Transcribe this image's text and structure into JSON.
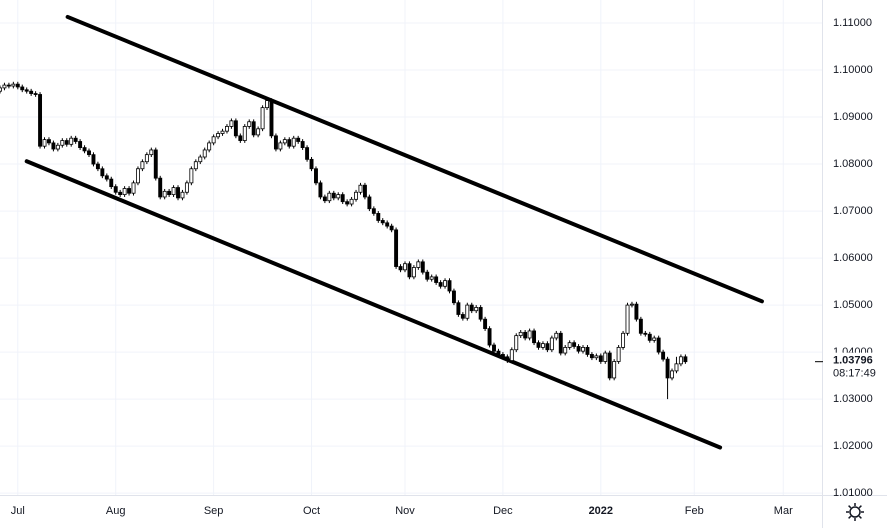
{
  "chart_data": {
    "type": "candlestick",
    "x": [
      -4,
      -3,
      -2,
      -1,
      0,
      1,
      2,
      3,
      4,
      5,
      6,
      7,
      8,
      9,
      10,
      11,
      12,
      13,
      14,
      15,
      16,
      17,
      18,
      19,
      20,
      21,
      22,
      23,
      24,
      25,
      26,
      27,
      28,
      29,
      30,
      31,
      32,
      33,
      34,
      35,
      36,
      37,
      38,
      39,
      40,
      41,
      42,
      43,
      44,
      45,
      46,
      47,
      48,
      49,
      50,
      51,
      52,
      53,
      54,
      55,
      56,
      57,
      58,
      59,
      60,
      61,
      62,
      63,
      64,
      65,
      66,
      67,
      68,
      69,
      70,
      71,
      72,
      73,
      74,
      75,
      76,
      77,
      78,
      79,
      80,
      81,
      82,
      83,
      84,
      85,
      86,
      87,
      88,
      89,
      90,
      91,
      92,
      93,
      94,
      95,
      96,
      97,
      98,
      99,
      100,
      101,
      102,
      103,
      104,
      105,
      106,
      107,
      108,
      109,
      110,
      111,
      112,
      113,
      114,
      115,
      116,
      117,
      118,
      119,
      120,
      121,
      122,
      123,
      124,
      125,
      126,
      127,
      128,
      129,
      130,
      131,
      132,
      133,
      134,
      135,
      136,
      137,
      138,
      139,
      140,
      141,
      142,
      143,
      144,
      145,
      146,
      147,
      148,
      149,
      150
    ],
    "open": [
      1.0955,
      1.0962,
      1.0968,
      1.0966,
      1.097,
      1.0964,
      1.0958,
      1.0955,
      1.095,
      1.0948,
      1.0838,
      1.0852,
      1.0845,
      1.0832,
      1.084,
      1.085,
      1.0842,
      1.0855,
      1.0848,
      1.0835,
      1.0828,
      1.082,
      1.08,
      1.079,
      1.0775,
      1.0768,
      1.0752,
      1.074,
      1.0735,
      1.0748,
      1.0738,
      1.076,
      1.079,
      1.0805,
      1.082,
      1.083,
      1.077,
      1.073,
      1.0742,
      1.0735,
      1.075,
      1.0728,
      1.074,
      1.076,
      1.079,
      1.0805,
      1.0815,
      1.083,
      1.0845,
      1.0858,
      1.0865,
      1.087,
      1.088,
      1.0892,
      1.086,
      1.085,
      1.088,
      1.089,
      1.0862,
      1.0875,
      1.092,
      1.0935,
      1.086,
      1.0832,
      1.0845,
      1.0852,
      1.0838,
      1.0855,
      1.0848,
      1.0835,
      1.081,
      1.079,
      1.076,
      1.073,
      1.0722,
      1.0738,
      1.0728,
      1.0735,
      1.072,
      1.0715,
      1.0725,
      1.074,
      1.0755,
      1.073,
      1.0705,
      1.0695,
      1.068,
      1.0675,
      1.0668,
      1.066,
      1.0582,
      1.0575,
      1.0588,
      1.056,
      1.058,
      1.0592,
      1.057,
      1.0555,
      1.056,
      1.0548,
      1.054,
      1.0552,
      1.053,
      1.0505,
      1.048,
      1.0472,
      1.05,
      1.0488,
      1.0495,
      1.047,
      1.045,
      1.0415,
      1.0402,
      1.0395,
      1.039,
      1.0382,
      1.0405,
      1.0435,
      1.0442,
      1.043,
      1.0445,
      1.042,
      1.041,
      1.0418,
      1.0405,
      1.043,
      1.044,
      1.0398,
      1.041,
      1.042,
      1.0412,
      1.0402,
      1.041,
      1.0395,
      1.0388,
      1.0392,
      1.038,
      1.0398,
      1.0345,
      1.038,
      1.041,
      1.044,
      1.05,
      1.0502,
      1.047,
      1.044,
      1.0438,
      1.0425,
      1.043,
      1.04,
      1.0385,
      1.0345,
      1.036,
      1.0375,
      1.039
    ],
    "high": [
      1.0967,
      1.0973,
      1.0973,
      1.0975,
      1.0975,
      1.0969,
      1.0963,
      1.096,
      1.0955,
      1.0953,
      1.0857,
      1.0857,
      1.085,
      1.0845,
      1.0855,
      1.0855,
      1.086,
      1.086,
      1.0853,
      1.084,
      1.0833,
      1.0825,
      1.0805,
      1.0795,
      1.078,
      1.0773,
      1.0757,
      1.0745,
      1.0753,
      1.0753,
      1.0765,
      1.0795,
      1.081,
      1.0825,
      1.0835,
      1.0835,
      1.0775,
      1.0747,
      1.0747,
      1.0755,
      1.0755,
      1.0745,
      1.0765,
      1.0795,
      1.081,
      1.082,
      1.0835,
      1.085,
      1.0863,
      1.087,
      1.0875,
      1.0885,
      1.0897,
      1.0897,
      1.0865,
      1.0885,
      1.0895,
      1.0895,
      1.088,
      1.0925,
      1.094,
      1.094,
      1.0865,
      1.085,
      1.0857,
      1.0857,
      1.086,
      1.086,
      1.0853,
      1.084,
      1.0815,
      1.0795,
      1.0765,
      1.0735,
      1.0743,
      1.0743,
      1.074,
      1.074,
      1.0725,
      1.073,
      1.0745,
      1.076,
      1.076,
      1.0735,
      1.071,
      1.07,
      1.0685,
      1.068,
      1.0673,
      1.0665,
      1.0587,
      1.0593,
      1.0593,
      1.0585,
      1.0597,
      1.0597,
      1.0575,
      1.0565,
      1.0565,
      1.0553,
      1.0557,
      1.0557,
      1.0535,
      1.051,
      1.0485,
      1.0505,
      1.0505,
      1.05,
      1.05,
      1.0475,
      1.0455,
      1.042,
      1.0407,
      1.04,
      1.0395,
      1.041,
      1.044,
      1.0447,
      1.0447,
      1.045,
      1.045,
      1.0425,
      1.0423,
      1.0423,
      1.0435,
      1.0445,
      1.0445,
      1.0415,
      1.0425,
      1.0425,
      1.0417,
      1.0415,
      1.0415,
      1.04,
      1.0397,
      1.0397,
      1.0403,
      1.0403,
      1.0385,
      1.0415,
      1.0445,
      1.0505,
      1.0507,
      1.0507,
      1.0475,
      1.0445,
      1.0443,
      1.0435,
      1.0435,
      1.0405,
      1.039,
      1.0365,
      1.039,
      1.0395,
      1.0395
    ],
    "low": [
      1.095,
      1.0957,
      1.0961,
      1.0961,
      1.0959,
      1.0953,
      1.095,
      1.0945,
      1.0943,
      1.0833,
      1.0833,
      1.084,
      1.0827,
      1.0827,
      1.0835,
      1.0837,
      1.0837,
      1.0843,
      1.083,
      1.0823,
      1.0815,
      1.0795,
      1.0785,
      1.077,
      1.0763,
      1.0747,
      1.0735,
      1.073,
      1.073,
      1.0733,
      1.0733,
      1.0755,
      1.0785,
      1.08,
      1.0815,
      1.0765,
      1.0725,
      1.0725,
      1.073,
      1.073,
      1.0723,
      1.0723,
      1.0735,
      1.0755,
      1.0785,
      1.08,
      1.081,
      1.0825,
      1.084,
      1.0853,
      1.086,
      1.0865,
      1.0875,
      1.0855,
      1.0845,
      1.0845,
      1.0875,
      1.0857,
      1.0857,
      1.087,
      1.0915,
      1.0855,
      1.0827,
      1.0827,
      1.084,
      1.0833,
      1.0833,
      1.0843,
      1.083,
      1.0805,
      1.0785,
      1.0755,
      1.0725,
      1.0717,
      1.0717,
      1.0723,
      1.0723,
      1.0715,
      1.071,
      1.071,
      1.072,
      1.0735,
      1.0725,
      1.07,
      1.069,
      1.0675,
      1.067,
      1.0663,
      1.0655,
      1.0577,
      1.057,
      1.057,
      1.0555,
      1.0555,
      1.0575,
      1.0565,
      1.055,
      1.055,
      1.0543,
      1.0535,
      1.0535,
      1.0525,
      1.05,
      1.0475,
      1.0467,
      1.0467,
      1.0483,
      1.0483,
      1.0465,
      1.0445,
      1.041,
      1.0397,
      1.039,
      1.0385,
      1.0377,
      1.0377,
      1.04,
      1.043,
      1.0425,
      1.0425,
      1.0415,
      1.0405,
      1.0405,
      1.04,
      1.04,
      1.0425,
      1.0393,
      1.0393,
      1.0405,
      1.0407,
      1.0397,
      1.0397,
      1.039,
      1.0383,
      1.0383,
      1.0375,
      1.0375,
      1.034,
      1.034,
      1.0375,
      1.0405,
      1.0435,
      1.0495,
      1.0465,
      1.0435,
      1.0433,
      1.042,
      1.042,
      1.0395,
      1.038,
      1.03,
      1.034,
      1.0355,
      1.037,
      1.0375
    ],
    "close": [
      1.0962,
      1.0968,
      1.0966,
      1.097,
      1.0964,
      1.0958,
      1.0955,
      1.095,
      1.0948,
      1.0838,
      1.0852,
      1.0845,
      1.0832,
      1.084,
      1.085,
      1.0842,
      1.0855,
      1.0848,
      1.0835,
      1.0828,
      1.082,
      1.08,
      1.079,
      1.0775,
      1.0768,
      1.0752,
      1.074,
      1.0735,
      1.0748,
      1.0738,
      1.076,
      1.079,
      1.0805,
      1.082,
      1.083,
      1.077,
      1.073,
      1.0742,
      1.0735,
      1.075,
      1.0728,
      1.074,
      1.076,
      1.079,
      1.0805,
      1.0815,
      1.083,
      1.0845,
      1.0858,
      1.0865,
      1.087,
      1.088,
      1.0892,
      1.086,
      1.085,
      1.088,
      1.089,
      1.0862,
      1.0875,
      1.092,
      1.0935,
      1.086,
      1.0832,
      1.0845,
      1.0852,
      1.0838,
      1.0855,
      1.0848,
      1.0835,
      1.081,
      1.079,
      1.076,
      1.073,
      1.0722,
      1.0738,
      1.0728,
      1.0735,
      1.072,
      1.0715,
      1.0725,
      1.074,
      1.0755,
      1.073,
      1.0705,
      1.0695,
      1.068,
      1.0675,
      1.0668,
      1.066,
      1.0582,
      1.0575,
      1.0588,
      1.056,
      1.058,
      1.0592,
      1.057,
      1.0555,
      1.056,
      1.0548,
      1.054,
      1.0552,
      1.053,
      1.0505,
      1.048,
      1.0472,
      1.05,
      1.0488,
      1.0495,
      1.047,
      1.045,
      1.0415,
      1.0402,
      1.0395,
      1.039,
      1.0382,
      1.0405,
      1.0435,
      1.0442,
      1.043,
      1.0445,
      1.042,
      1.041,
      1.0418,
      1.0405,
      1.043,
      1.044,
      1.0398,
      1.041,
      1.042,
      1.0412,
      1.0402,
      1.041,
      1.0395,
      1.0388,
      1.0392,
      1.038,
      1.0398,
      1.0345,
      1.038,
      1.041,
      1.044,
      1.05,
      1.0502,
      1.047,
      1.044,
      1.0438,
      1.0425,
      1.043,
      1.04,
      1.0385,
      1.0345,
      1.036,
      1.0375,
      1.039,
      1.03796
    ],
    "up_color": "#ffffff",
    "down_color": "#000000",
    "xlim": [
      -4,
      180.7
    ],
    "xticks": [
      {
        "value": 0,
        "label": "Jul"
      },
      {
        "value": 22,
        "label": "Aug"
      },
      {
        "value": 44,
        "label": "Sep"
      },
      {
        "value": 66,
        "label": "Oct"
      },
      {
        "value": 87,
        "label": "Nov"
      },
      {
        "value": 109,
        "label": "Dec"
      },
      {
        "value": 131,
        "label": "2022"
      },
      {
        "value": 152,
        "label": "Feb"
      },
      {
        "value": 172,
        "label": "Mar"
      }
    ],
    "ylim": [
      1.0096,
      1.1149
    ],
    "yticks": [
      {
        "value": 1.01,
        "label": "1.01000"
      },
      {
        "value": 1.02,
        "label": "1.02000"
      },
      {
        "value": 1.03,
        "label": "1.03000"
      },
      {
        "value": 1.04,
        "label": "1.04000"
      },
      {
        "value": 1.05,
        "label": "1.05000"
      },
      {
        "value": 1.06,
        "label": "1.06000"
      },
      {
        "value": 1.07,
        "label": "1.07000"
      },
      {
        "value": 1.08,
        "label": "1.08000"
      },
      {
        "value": 1.09,
        "label": "1.09000"
      },
      {
        "value": 1.1,
        "label": "1.10000"
      },
      {
        "value": 1.11,
        "label": "1.11000"
      }
    ],
    "grid": true,
    "trend_lines": [
      {
        "x": [
          11.2,
          167.2
        ],
        "y": [
          1.1113,
          1.0508
        ]
      },
      {
        "x": [
          2.0,
          157.8
        ],
        "y": [
          1.0806,
          1.0197
        ]
      }
    ],
    "last_price": 1.03796,
    "countdown": "08:17:49"
  }
}
